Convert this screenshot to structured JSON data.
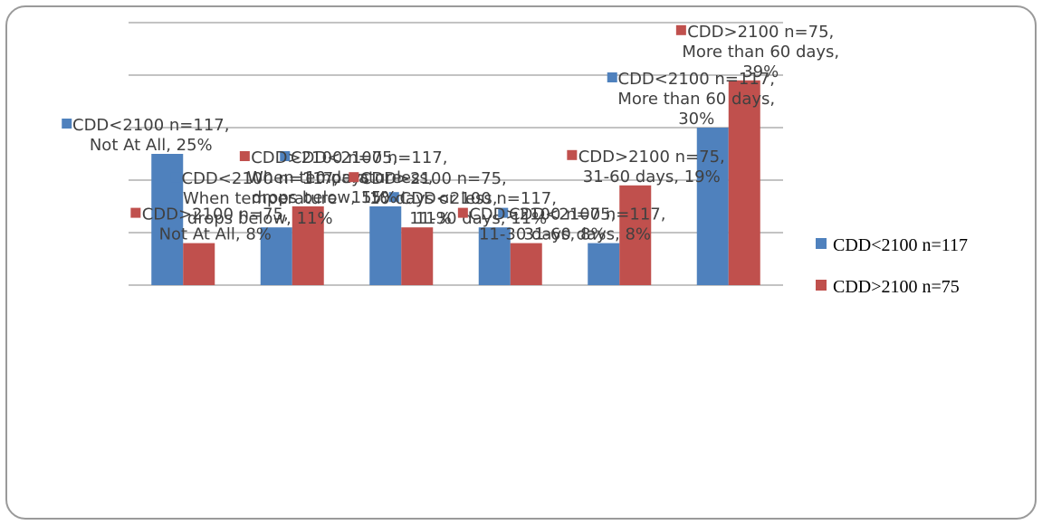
{
  "chart_data": {
    "type": "bar",
    "title": "",
    "categories": [
      "Not At All",
      "When temperature drops below",
      "10 days or less",
      "11-30 days",
      "31-60 days",
      "More than 60 days"
    ],
    "series": [
      {
        "name": "CDD<2100 n=117",
        "color": "#4F81BD",
        "values": [
          25,
          11,
          15,
          11,
          8,
          30
        ],
        "data_labels": [
          [
            "CDD<2100 n=117,",
            "Not At All, 25%"
          ],
          [
            "CDD<2100 n=117,",
            "When temperature",
            "drops below, 11%"
          ],
          [
            "CDD<2100 n=117,",
            "10 days or less,",
            "15%"
          ],
          [
            "CDD<2100 n=117,",
            "11-30 days, 11%"
          ],
          [
            "CDD<2100 n=117,",
            "31-60 days, 8%"
          ],
          [
            "CDD<2100 n=117,",
            "More than 60 days,",
            "30%"
          ]
        ]
      },
      {
        "name": "CDD>2100 n=75",
        "color": "#C0504D",
        "values": [
          8,
          15,
          11,
          8,
          19,
          39
        ],
        "data_labels": [
          [
            "CDD>2100 n=75,",
            "Not At All, 8%"
          ],
          [
            "CDD>2100 n=75,",
            "When temperature",
            "drops below, 15%"
          ],
          [
            "CDD>2100 n=75,",
            "10 days or less,",
            "11%"
          ],
          [
            "CDD>2100 n=75,",
            "11-30 days, 8%"
          ],
          [
            "CDD>2100 n=75,",
            "31-60 days, 19%"
          ],
          [
            "CDD>2100 n=75,",
            "More than 60 days,",
            "39%"
          ]
        ]
      }
    ],
    "ylim": [
      0,
      50
    ],
    "grid": true,
    "legend": "right",
    "x_labels_visible": false,
    "y_labels_visible": false
  }
}
